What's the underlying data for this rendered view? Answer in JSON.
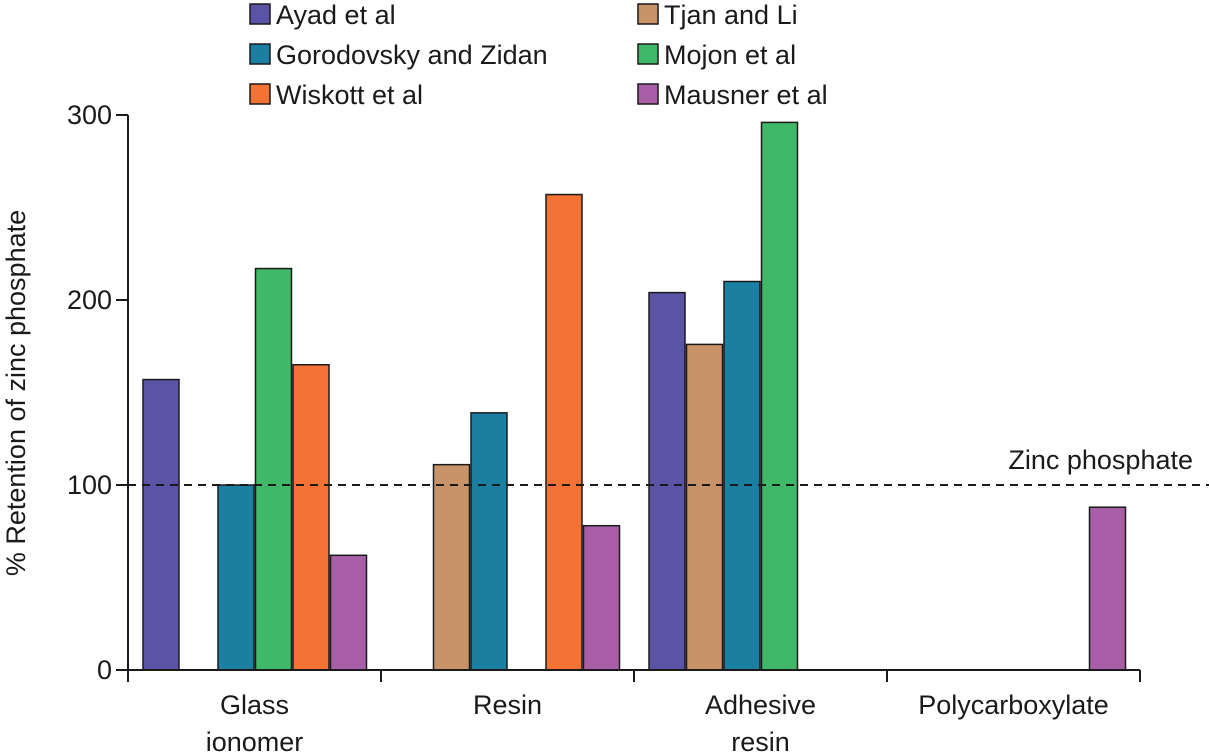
{
  "chart_data": {
    "type": "bar",
    "ylabel": "% Retention of zinc phosphate",
    "ylim": [
      0,
      300
    ],
    "yticks": [
      0,
      100,
      200,
      300
    ],
    "categories": [
      [
        "Glass",
        "ionomer"
      ],
      [
        "Resin"
      ],
      [
        "Adhesive",
        "resin"
      ],
      [
        "Polycarboxylate"
      ]
    ],
    "series": [
      {
        "name": "Ayad et al",
        "color": "#5b53a6",
        "values": [
          157,
          null,
          204,
          null
        ]
      },
      {
        "name": "Tjan and Li",
        "color": "#c9936a",
        "values": [
          null,
          111,
          176,
          null
        ]
      },
      {
        "name": "Gorodovsky and Zidan",
        "color": "#1a7fa0",
        "values": [
          100,
          139,
          210,
          null
        ]
      },
      {
        "name": "Mojon et al",
        "color": "#40b86a",
        "values": [
          217,
          null,
          296,
          null
        ]
      },
      {
        "name": "Wiskott et al",
        "color": "#f47234",
        "values": [
          165,
          257,
          null,
          null
        ]
      },
      {
        "name": "Mausner et al",
        "color": "#a95fa7",
        "values": [
          62,
          78,
          null,
          88
        ]
      }
    ],
    "reference_line": {
      "value": 100,
      "label": "Zinc phosphate"
    },
    "legend": {
      "placement": "top",
      "columns": 2
    }
  }
}
